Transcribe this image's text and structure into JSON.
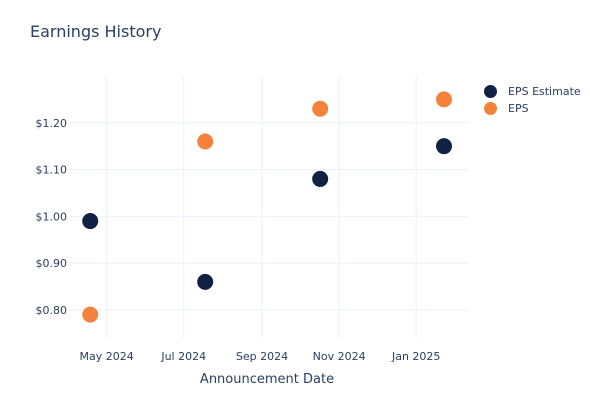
{
  "chart_data": {
    "type": "scatter",
    "title": "Earnings History",
    "xlabel": "Announcement Date",
    "ylabel": "",
    "x": [
      "2024-04-18",
      "2024-07-18",
      "2024-10-17",
      "2025-01-23"
    ],
    "series": [
      {
        "name": "EPS Estimate",
        "color": "#0f2144",
        "values": [
          0.99,
          0.86,
          1.08,
          1.15
        ]
      },
      {
        "name": "EPS",
        "color": "#f5823b",
        "values": [
          0.79,
          1.16,
          1.23,
          1.25
        ]
      }
    ],
    "xticks": [
      {
        "date": "2024-05-01",
        "label": "May 2024"
      },
      {
        "date": "2024-07-01",
        "label": "Jul 2024"
      },
      {
        "date": "2024-09-01",
        "label": "Sep 2024"
      },
      {
        "date": "2024-11-01",
        "label": "Nov 2024"
      },
      {
        "date": "2025-01-01",
        "label": "Jan 2025"
      }
    ],
    "yticks": [
      {
        "value": 0.8,
        "label": "$0.80"
      },
      {
        "value": 0.9,
        "label": "$0.90"
      },
      {
        "value": 1.0,
        "label": "$1.00"
      },
      {
        "value": 1.1,
        "label": "$1.10"
      },
      {
        "value": 1.2,
        "label": "$1.20"
      }
    ],
    "xlim": [
      "2024-04-02",
      "2025-02-11"
    ],
    "ylim": [
      0.74,
      1.3
    ],
    "grid": true,
    "legend_position": "top-right"
  }
}
